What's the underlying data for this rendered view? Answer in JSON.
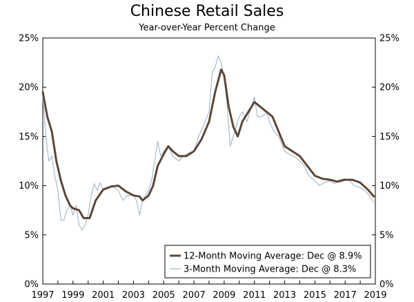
{
  "chart_data": {
    "type": "line",
    "title": "Chinese Retail Sales",
    "subtitle": "Year-over-Year Percent Change",
    "xlabel": "",
    "ylabel": "",
    "xlim": [
      1997.0,
      2019.0
    ],
    "ylim": [
      0,
      25
    ],
    "y_ticks": [
      "0%",
      "5%",
      "10%",
      "15%",
      "20%",
      "25%"
    ],
    "y_tick_values": [
      0,
      5,
      10,
      15,
      20,
      25
    ],
    "x_ticks": [
      "1997",
      "1999",
      "2001",
      "2003",
      "2005",
      "2007",
      "2009",
      "2011",
      "2013",
      "2015",
      "2017",
      "2019"
    ],
    "x_tick_values": [
      1997,
      1999,
      2001,
      2003,
      2005,
      2007,
      2009,
      2011,
      2013,
      2015,
      2017,
      2019
    ],
    "grid": false,
    "legend_position": "bottom-right",
    "series": [
      {
        "name": "12-Month Moving Average: Dec @ 8.9%",
        "color": "#5b4636",
        "x": [
          1997.0,
          1997.3,
          1997.6,
          1997.9,
          1998.2,
          1998.5,
          1998.8,
          1999.0,
          1999.4,
          1999.7,
          2000.1,
          2000.5,
          2001.0,
          2001.5,
          2002.0,
          2002.5,
          2003.0,
          2003.4,
          2003.6,
          2004.0,
          2004.3,
          2004.6,
          2005.0,
          2005.3,
          2005.6,
          2006.0,
          2006.5,
          2007.0,
          2007.5,
          2008.0,
          2008.4,
          2008.8,
          2009.0,
          2009.3,
          2009.6,
          2009.9,
          2010.2,
          2010.6,
          2011.0,
          2011.4,
          2011.8,
          2012.2,
          2012.6,
          2013.0,
          2013.5,
          2014.0,
          2014.5,
          2015.0,
          2015.5,
          2016.0,
          2016.5,
          2017.0,
          2017.5,
          2018.0,
          2018.5,
          2018.9
        ],
        "values": [
          19.5,
          17.0,
          15.5,
          12.5,
          10.5,
          9.0,
          8.0,
          7.7,
          7.5,
          6.7,
          6.7,
          8.5,
          9.6,
          9.9,
          10.0,
          9.4,
          9.0,
          8.9,
          8.5,
          9.0,
          10.0,
          12.0,
          13.2,
          14.0,
          13.5,
          13.0,
          13.0,
          13.5,
          14.7,
          16.5,
          19.5,
          21.8,
          21.2,
          18.0,
          16.0,
          15.0,
          16.5,
          17.5,
          18.5,
          18.0,
          17.5,
          17.0,
          15.5,
          14.0,
          13.5,
          13.0,
          12.0,
          11.0,
          10.7,
          10.6,
          10.4,
          10.6,
          10.6,
          10.3,
          9.6,
          8.9
        ]
      },
      {
        "name": "3-Month Moving Average: Dec @ 8.3%",
        "color": "#9fb4cc",
        "x": [
          1997.0,
          1997.2,
          1997.4,
          1997.6,
          1997.8,
          1998.0,
          1998.2,
          1998.4,
          1998.6,
          1998.8,
          1999.0,
          1999.2,
          1999.4,
          1999.6,
          1999.8,
          2000.0,
          2000.2,
          2000.4,
          2000.6,
          2000.8,
          2001.0,
          2001.3,
          2001.6,
          2002.0,
          2002.3,
          2002.6,
          2003.0,
          2003.2,
          2003.4,
          2003.6,
          2003.8,
          2004.0,
          2004.2,
          2004.4,
          2004.6,
          2004.8,
          2005.0,
          2005.3,
          2005.6,
          2006.0,
          2006.3,
          2006.6,
          2007.0,
          2007.3,
          2007.6,
          2008.0,
          2008.2,
          2008.4,
          2008.6,
          2008.8,
          2009.0,
          2009.2,
          2009.4,
          2009.6,
          2009.8,
          2010.0,
          2010.2,
          2010.5,
          2010.8,
          2011.0,
          2011.2,
          2011.5,
          2011.8,
          2012.0,
          2012.3,
          2012.6,
          2013.0,
          2013.3,
          2013.6,
          2014.0,
          2014.3,
          2014.6,
          2015.0,
          2015.3,
          2015.6,
          2016.0,
          2016.3,
          2016.6,
          2017.0,
          2017.3,
          2017.6,
          2018.0,
          2018.3,
          2018.6,
          2018.9
        ],
        "values": [
          19.0,
          15.0,
          12.5,
          13.0,
          11.0,
          9.5,
          6.5,
          6.5,
          7.5,
          8.0,
          7.0,
          8.0,
          6.0,
          5.5,
          6.0,
          7.0,
          9.0,
          10.2,
          9.5,
          10.3,
          9.5,
          9.8,
          10.0,
          9.5,
          8.5,
          9.0,
          9.0,
          8.5,
          7.0,
          8.5,
          9.0,
          9.5,
          10.5,
          12.5,
          14.5,
          13.0,
          13.5,
          14.0,
          13.0,
          12.5,
          13.0,
          13.3,
          13.5,
          15.0,
          16.0,
          17.5,
          21.5,
          22.0,
          23.2,
          22.5,
          21.0,
          18.0,
          14.0,
          15.0,
          16.0,
          17.0,
          17.5,
          16.5,
          18.0,
          19.0,
          17.0,
          17.0,
          17.5,
          16.5,
          15.5,
          15.0,
          13.5,
          13.2,
          13.0,
          12.5,
          12.0,
          11.0,
          10.5,
          10.0,
          10.3,
          10.5,
          10.2,
          10.6,
          10.7,
          10.5,
          10.0,
          9.8,
          9.5,
          9.0,
          8.3
        ]
      }
    ]
  }
}
